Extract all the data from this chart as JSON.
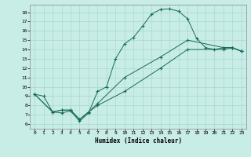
{
  "xlabel": "Humidex (Indice chaleur)",
  "ylabel": "",
  "xlim": [
    -0.5,
    23.5
  ],
  "ylim": [
    5.5,
    18.8
  ],
  "xticks": [
    0,
    1,
    2,
    3,
    4,
    5,
    6,
    7,
    8,
    9,
    10,
    11,
    12,
    13,
    14,
    15,
    16,
    17,
    18,
    19,
    20,
    21,
    22,
    23
  ],
  "yticks": [
    6,
    7,
    8,
    9,
    10,
    11,
    12,
    13,
    14,
    15,
    16,
    17,
    18
  ],
  "bg_color": "#c8ece6",
  "grid_color": "#a8d8d0",
  "line_color": "#1a6b5a",
  "curve1_x": [
    0,
    1,
    2,
    3,
    4,
    5,
    6,
    7,
    8,
    9,
    10,
    11,
    12,
    13,
    14,
    15,
    16,
    17,
    18,
    19,
    20,
    21,
    22,
    23
  ],
  "curve1_y": [
    9.2,
    9.0,
    7.3,
    7.2,
    7.4,
    6.3,
    7.2,
    9.5,
    10.0,
    13.0,
    14.6,
    15.3,
    16.5,
    17.8,
    18.3,
    18.35,
    18.1,
    17.3,
    15.2,
    14.2,
    14.0,
    14.2,
    14.2,
    13.8
  ],
  "curve2_x": [
    0,
    2,
    3,
    4,
    5,
    6,
    7,
    10,
    14,
    17,
    21,
    22,
    23
  ],
  "curve2_y": [
    9.2,
    7.3,
    7.5,
    7.5,
    6.5,
    7.3,
    8.0,
    9.5,
    12.0,
    14.0,
    14.0,
    14.2,
    13.8
  ],
  "curve3_x": [
    0,
    2,
    3,
    4,
    5,
    6,
    7,
    10,
    14,
    17,
    21,
    22,
    23
  ],
  "curve3_y": [
    9.2,
    7.3,
    7.5,
    7.5,
    6.5,
    7.3,
    8.2,
    11.0,
    13.2,
    15.0,
    14.2,
    14.2,
    13.8
  ]
}
